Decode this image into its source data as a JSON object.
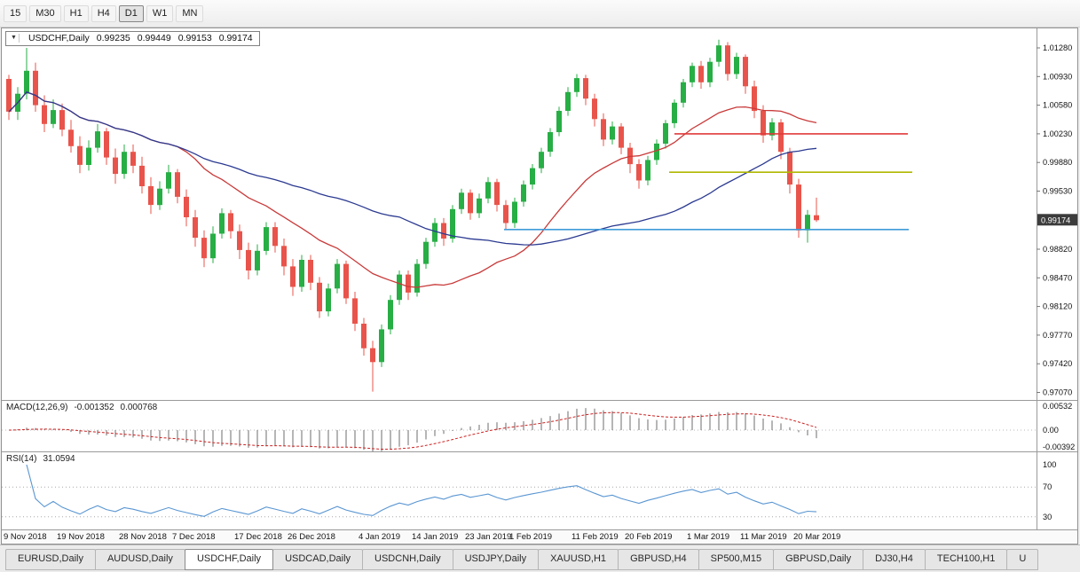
{
  "toolbar": {
    "timeframes": [
      {
        "label": "15",
        "active": false
      },
      {
        "label": "M30",
        "active": false
      },
      {
        "label": "H1",
        "active": false
      },
      {
        "label": "H4",
        "active": false
      },
      {
        "label": "D1",
        "active": true
      },
      {
        "label": "W1",
        "active": false
      },
      {
        "label": "MN",
        "active": false
      }
    ]
  },
  "chart": {
    "symbol_box": {
      "title": "USDCHF,Daily",
      "open": "0.99235",
      "high": "0.99449",
      "low": "0.99153",
      "close": "0.99174"
    },
    "colors": {
      "up": "#27ae45",
      "down": "#e8544b",
      "ma_fast": "#c93a3a",
      "ma_slow": "#2b3a91",
      "macd_hist": "#6e6e6e",
      "macd_signal": "#cc2222",
      "rsi": "#5a96d2",
      "price_tag_bg": "#3c3c3c",
      "price_tag_text": "#ffffff"
    }
  },
  "macd_panel": {
    "title": "MACD(12,26,9)",
    "main_value": "-0.001352",
    "signal_value": "0.000768",
    "axis": [
      "0.00532",
      "0.00",
      "-0.00392"
    ]
  },
  "rsi_panel": {
    "title": "RSI(14)",
    "value": "31.0594",
    "axis": [
      "100",
      "70",
      "30"
    ]
  },
  "tabs": {
    "active_index": 2,
    "items": [
      "EURUSD,Daily",
      "AUDUSD,Daily",
      "USDCHF,Daily",
      "USDCAD,Daily",
      "USDCNH,Daily",
      "USDJPY,Daily",
      "XAUUSD,H1",
      "GBPUSD,H4",
      "SP500,M15",
      "GBPUSD,Daily",
      "DJ30,H4",
      "TECH100,H1",
      "U"
    ]
  },
  "chart_data": {
    "type": "candlestick",
    "title": "USDCHF,Daily",
    "symbol": "USDCHF",
    "timeframe": "Daily",
    "current": {
      "open": 0.99235,
      "high": 0.99449,
      "low": 0.99153,
      "close": 0.99174
    },
    "price_axis": [
      1.0128,
      1.0093,
      1.0058,
      1.0023,
      0.9988,
      0.9953,
      0.9882,
      0.9847,
      0.9812,
      0.9777,
      0.9742,
      0.9707
    ],
    "indicators": {
      "ma_fast_period": 20,
      "ma_slow_period": 45,
      "macd": {
        "fast": 12,
        "slow": 26,
        "signal": 9,
        "main": -0.001352,
        "signal_value": 0.000768
      },
      "rsi": {
        "period": 14,
        "value": 31.0594
      }
    },
    "hlines": [
      {
        "price": 1.0023,
        "color": "#e03a3a",
        "start_index": 75,
        "end_index": 101.3
      },
      {
        "price": 0.9976,
        "color": "#b0b800",
        "start_index": 74.4,
        "end_index": 101.8
      },
      {
        "price": 0.9906,
        "color": "#3f9bd9",
        "start_index": 55.8,
        "end_index": 101.4
      }
    ],
    "date_labels": [
      {
        "label": "9 Nov 2018",
        "index": 0
      },
      {
        "label": "19 Nov 2018",
        "index": 6
      },
      {
        "label": "28 Nov 2018",
        "index": 13
      },
      {
        "label": "7 Dec 2018",
        "index": 19
      },
      {
        "label": "17 Dec 2018",
        "index": 26
      },
      {
        "label": "26 Dec 2018",
        "index": 32
      },
      {
        "label": "4 Jan 2019",
        "index": 40
      },
      {
        "label": "14 Jan 2019",
        "index": 46
      },
      {
        "label": "23 Jan 2019",
        "index": 52
      },
      {
        "label": "1 Feb 2019",
        "index": 57
      },
      {
        "label": "11 Feb 2019",
        "index": 64
      },
      {
        "label": "20 Feb 2019",
        "index": 70
      },
      {
        "label": "1 Mar 2019",
        "index": 77
      },
      {
        "label": "11 Mar 2019",
        "index": 83
      },
      {
        "label": "20 Mar 2019",
        "index": 89
      }
    ],
    "ohlc": [
      [
        1.009,
        1.0095,
        1.004,
        1.005
      ],
      [
        1.005,
        1.008,
        1.004,
        1.0072
      ],
      [
        1.0072,
        1.0128,
        1.0065,
        1.01
      ],
      [
        1.01,
        1.011,
        1.005,
        1.0058
      ],
      [
        1.0058,
        1.007,
        1.0025,
        1.0035
      ],
      [
        1.0035,
        1.0065,
        1.003,
        1.0052
      ],
      [
        1.0052,
        1.006,
        1.002,
        1.0028
      ],
      [
        1.0028,
        1.004,
        1.0,
        1.0008
      ],
      [
        1.0008,
        1.002,
        0.9975,
        0.9985
      ],
      [
        0.9985,
        1.0015,
        0.9978,
        1.0006
      ],
      [
        1.0006,
        1.0035,
        1.0,
        1.0026
      ],
      [
        1.0026,
        1.003,
        0.9985,
        0.9994
      ],
      [
        0.9994,
        1.0005,
        0.9962,
        0.9974
      ],
      [
        0.9974,
        1.001,
        0.9968,
        1.0001
      ],
      [
        1.0001,
        1.001,
        0.9975,
        0.9984
      ],
      [
        0.9984,
        0.9995,
        0.995,
        0.9959
      ],
      [
        0.9959,
        0.997,
        0.9925,
        0.9936
      ],
      [
        0.9936,
        0.9965,
        0.993,
        0.9956
      ],
      [
        0.9956,
        0.9985,
        0.995,
        0.9976
      ],
      [
        0.9976,
        0.998,
        0.9938,
        0.9946
      ],
      [
        0.9946,
        0.9955,
        0.991,
        0.9921
      ],
      [
        0.9921,
        0.993,
        0.9885,
        0.9896
      ],
      [
        0.9896,
        0.9905,
        0.986,
        0.9871
      ],
      [
        0.9871,
        0.991,
        0.9865,
        0.9901
      ],
      [
        0.9901,
        0.9932,
        0.9895,
        0.9926
      ],
      [
        0.9926,
        0.993,
        0.9895,
        0.9904
      ],
      [
        0.9904,
        0.9912,
        0.987,
        0.9881
      ],
      [
        0.9881,
        0.989,
        0.9845,
        0.9856
      ],
      [
        0.9856,
        0.9888,
        0.985,
        0.988
      ],
      [
        0.988,
        0.9915,
        0.9875,
        0.9909
      ],
      [
        0.9909,
        0.9915,
        0.9878,
        0.9886
      ],
      [
        0.9886,
        0.9895,
        0.985,
        0.9861
      ],
      [
        0.9861,
        0.987,
        0.9825,
        0.9836
      ],
      [
        0.9836,
        0.9875,
        0.983,
        0.9869
      ],
      [
        0.9869,
        0.9875,
        0.9832,
        0.9841
      ],
      [
        0.9841,
        0.9848,
        0.9798,
        0.9806
      ],
      [
        0.9806,
        0.984,
        0.98,
        0.9834
      ],
      [
        0.9834,
        0.987,
        0.9828,
        0.9864
      ],
      [
        0.9864,
        0.9868,
        0.9815,
        0.9822
      ],
      [
        0.9822,
        0.983,
        0.9782,
        0.9791
      ],
      [
        0.9791,
        0.9798,
        0.9752,
        0.9761
      ],
      [
        0.9761,
        0.977,
        0.9708,
        0.9744
      ],
      [
        0.9744,
        0.979,
        0.9738,
        0.9784
      ],
      [
        0.9784,
        0.9826,
        0.9778,
        0.982
      ],
      [
        0.982,
        0.9856,
        0.9814,
        0.9851
      ],
      [
        0.9851,
        0.9856,
        0.982,
        0.9829
      ],
      [
        0.9829,
        0.987,
        0.9824,
        0.9864
      ],
      [
        0.9864,
        0.9896,
        0.9858,
        0.9891
      ],
      [
        0.9891,
        0.992,
        0.9885,
        0.9914
      ],
      [
        0.9914,
        0.992,
        0.9886,
        0.9895
      ],
      [
        0.9895,
        0.9936,
        0.989,
        0.9931
      ],
      [
        0.9931,
        0.9956,
        0.9925,
        0.9951
      ],
      [
        0.9951,
        0.9955,
        0.9918,
        0.9926
      ],
      [
        0.9926,
        0.995,
        0.992,
        0.9944
      ],
      [
        0.9944,
        0.997,
        0.9938,
        0.9964
      ],
      [
        0.9964,
        0.9968,
        0.9928,
        0.9936
      ],
      [
        0.9936,
        0.9942,
        0.9906,
        0.9914
      ],
      [
        0.9914,
        0.9945,
        0.9908,
        0.994
      ],
      [
        0.994,
        0.9966,
        0.9934,
        0.9961
      ],
      [
        0.9961,
        0.9986,
        0.9955,
        0.9981
      ],
      [
        0.9981,
        1.0006,
        0.9975,
        1.0001
      ],
      [
        1.0001,
        1.003,
        0.9995,
        1.0025
      ],
      [
        1.0025,
        1.0056,
        1.002,
        1.0051
      ],
      [
        1.0051,
        1.008,
        1.0045,
        1.0074
      ],
      [
        1.0074,
        1.0096,
        1.0068,
        1.0091
      ],
      [
        1.0091,
        1.0095,
        1.0058,
        1.0066
      ],
      [
        1.0066,
        1.0072,
        1.0032,
        1.0041
      ],
      [
        1.0041,
        1.0048,
        1.0008,
        1.0016
      ],
      [
        1.0016,
        1.0038,
        1.001,
        1.0032
      ],
      [
        1.0032,
        1.0036,
        0.9998,
        1.0006
      ],
      [
        1.0006,
        1.0012,
        0.9975,
        0.9986
      ],
      [
        0.9986,
        0.9992,
        0.9956,
        0.9966
      ],
      [
        0.9966,
        0.9996,
        0.996,
        0.9991
      ],
      [
        0.9991,
        1.0016,
        0.9985,
        1.0011
      ],
      [
        1.0011,
        1.004,
        1.0005,
        1.0036
      ],
      [
        1.0036,
        1.0065,
        1.003,
        1.0061
      ],
      [
        1.0061,
        1.009,
        1.0055,
        1.0086
      ],
      [
        1.0086,
        1.011,
        1.008,
        1.0106
      ],
      [
        1.0106,
        1.0112,
        1.0078,
        1.0086
      ],
      [
        1.0086,
        1.0116,
        1.008,
        1.0111
      ],
      [
        1.0111,
        1.0138,
        1.0105,
        1.0131
      ],
      [
        1.0131,
        1.0135,
        1.0088,
        1.0096
      ],
      [
        1.0096,
        1.0122,
        1.009,
        1.0117
      ],
      [
        1.0117,
        1.012,
        1.0072,
        1.0081
      ],
      [
        1.0081,
        1.0088,
        1.0042,
        1.0051
      ],
      [
        1.0051,
        1.0058,
        1.0012,
        1.0021
      ],
      [
        1.0021,
        1.0042,
        1.0015,
        1.0037
      ],
      [
        1.0037,
        1.0041,
        0.9992,
        1.0001
      ],
      [
        1.0001,
        1.0006,
        0.995,
        0.9961
      ],
      [
        0.9961,
        0.9968,
        0.9896,
        0.9905
      ],
      [
        0.9905,
        0.993,
        0.989,
        0.9924
      ],
      [
        0.99235,
        0.99449,
        0.99153,
        0.99174
      ]
    ]
  }
}
